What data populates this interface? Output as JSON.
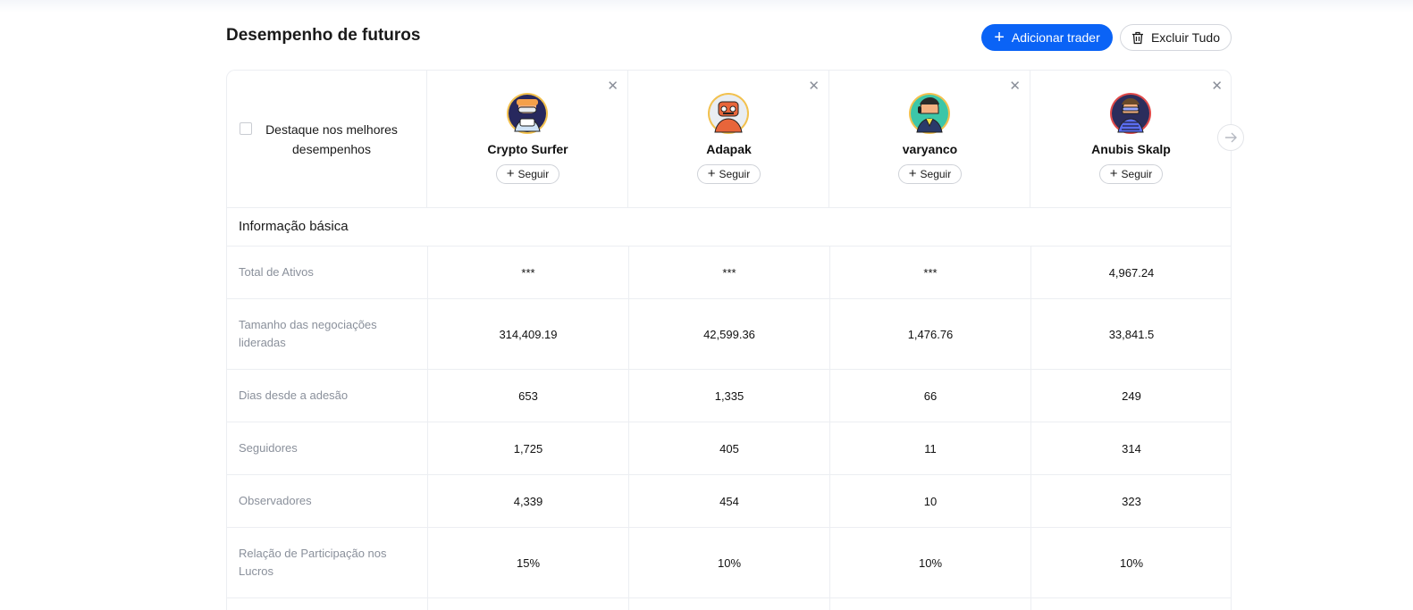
{
  "page_title": "Desempenho de futuros",
  "toolbar": {
    "add_label": "Adicionar trader",
    "delete_all_label": "Excluir Tudo"
  },
  "highlight": {
    "label_line1": "Destaque nos melhores",
    "label_line2": "desempenhos",
    "checked": false
  },
  "traders": [
    {
      "name": "Crypto Surfer",
      "follow_label": "Seguir"
    },
    {
      "name": "Adapak",
      "follow_label": "Seguir"
    },
    {
      "name": "varyanco",
      "follow_label": "Seguir"
    },
    {
      "name": "Anubis Skalp",
      "follow_label": "Seguir"
    }
  ],
  "section": {
    "title": "Informação básica"
  },
  "rows": [
    {
      "label": [
        "Total de Ativos"
      ],
      "values": [
        "***",
        "***",
        "***",
        "4,967.24"
      ]
    },
    {
      "label": [
        "Tamanho das negociações",
        "lideradas"
      ],
      "values": [
        "314,409.19",
        "42,599.36",
        "1,476.76",
        "33,841.5"
      ]
    },
    {
      "label": [
        "Dias desde a adesão"
      ],
      "values": [
        "653",
        "1,335",
        "66",
        "249"
      ]
    },
    {
      "label": [
        "Seguidores"
      ],
      "values": [
        "1,725",
        "405",
        "11",
        "314"
      ]
    },
    {
      "label": [
        "Observadores"
      ],
      "values": [
        "4,339",
        "454",
        "10",
        "323"
      ]
    },
    {
      "label": [
        "Relação de Participação nos",
        "Lucros"
      ],
      "values": [
        "15%",
        "10%",
        "10%",
        "10%"
      ]
    }
  ],
  "colors": {
    "accent": "#0a63f6"
  }
}
